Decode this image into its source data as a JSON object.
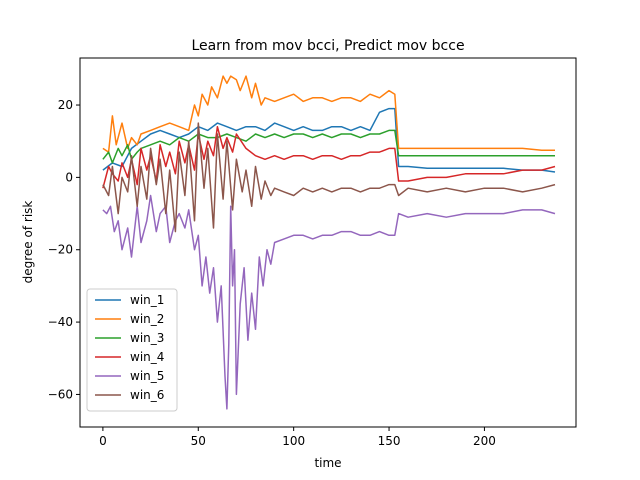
{
  "chart_data": {
    "type": "line",
    "title": "Learn from mov bcci, Predict mov bcce",
    "xlabel": "time",
    "ylabel": "degree of risk",
    "xlim": [
      -12,
      248
    ],
    "ylim": [
      -69,
      33
    ],
    "xticks": [
      0,
      50,
      100,
      150,
      200
    ],
    "yticks": [
      -60,
      -40,
      -20,
      0,
      20
    ],
    "grid": false,
    "legend": "lower-left",
    "series": [
      {
        "name": "win_1",
        "color": "#1f77b4",
        "x": [
          0,
          5,
          10,
          15,
          20,
          25,
          30,
          35,
          40,
          45,
          50,
          55,
          60,
          65,
          70,
          75,
          80,
          85,
          90,
          95,
          100,
          105,
          110,
          115,
          120,
          125,
          130,
          135,
          140,
          145,
          150,
          153,
          155,
          160,
          170,
          180,
          190,
          200,
          210,
          220,
          230,
          237
        ],
        "y": [
          2,
          4,
          3,
          8,
          10,
          12,
          13,
          12,
          11,
          12,
          14,
          13,
          15,
          14,
          13,
          14,
          14,
          13,
          15,
          14,
          13,
          14,
          13,
          13,
          14,
          14,
          13,
          14,
          13,
          18,
          19,
          19,
          3,
          3,
          2.5,
          2.5,
          2.5,
          2.5,
          2.5,
          2,
          2,
          1.5
        ]
      },
      {
        "name": "win_2",
        "color": "#ff7f0e",
        "x": [
          0,
          3,
          5,
          7,
          10,
          13,
          15,
          18,
          20,
          25,
          30,
          35,
          40,
          45,
          48,
          50,
          52,
          55,
          57,
          60,
          63,
          65,
          67,
          70,
          72,
          75,
          78,
          80,
          83,
          85,
          90,
          95,
          100,
          105,
          110,
          115,
          120,
          125,
          130,
          135,
          140,
          145,
          150,
          153,
          155,
          160,
          170,
          180,
          190,
          200,
          210,
          220,
          230,
          237
        ],
        "y": [
          8,
          7,
          17,
          9,
          15,
          8,
          11,
          9,
          12,
          13,
          14,
          15,
          14,
          13,
          20,
          17,
          23,
          20,
          25,
          22,
          28,
          26,
          28,
          27,
          24,
          28,
          22,
          26,
          20,
          22,
          21,
          22,
          23,
          21,
          22,
          22,
          21,
          22,
          22,
          21,
          23,
          22,
          24,
          23,
          8,
          8,
          8,
          8,
          8,
          8,
          8,
          8,
          7.5,
          7.5
        ]
      },
      {
        "name": "win_3",
        "color": "#2ca02c",
        "x": [
          0,
          3,
          5,
          8,
          10,
          13,
          15,
          18,
          20,
          25,
          30,
          35,
          40,
          45,
          50,
          55,
          60,
          65,
          70,
          75,
          80,
          85,
          90,
          95,
          100,
          105,
          110,
          115,
          120,
          125,
          130,
          135,
          140,
          145,
          150,
          153,
          155,
          160,
          170,
          180,
          190,
          200,
          210,
          220,
          230,
          237
        ],
        "y": [
          5,
          7,
          4,
          8,
          6,
          9,
          5,
          7,
          8,
          9,
          10,
          9,
          11,
          10,
          12,
          11,
          11,
          12,
          11,
          10,
          12,
          11,
          12,
          11,
          12,
          12,
          11,
          12,
          11,
          12,
          12,
          11,
          12,
          12,
          13,
          13,
          6,
          6,
          6,
          6,
          6,
          6,
          6,
          6,
          6,
          6
        ]
      },
      {
        "name": "win_4",
        "color": "#d62728",
        "x": [
          0,
          3,
          5,
          8,
          10,
          13,
          15,
          18,
          20,
          23,
          25,
          28,
          30,
          33,
          35,
          38,
          40,
          43,
          45,
          48,
          50,
          53,
          55,
          58,
          60,
          63,
          65,
          68,
          70,
          75,
          80,
          85,
          90,
          95,
          100,
          105,
          110,
          115,
          120,
          125,
          130,
          135,
          140,
          145,
          150,
          153,
          155,
          160,
          170,
          180,
          190,
          200,
          210,
          220,
          230,
          237
        ],
        "y": [
          -3,
          3,
          1,
          -1,
          4,
          0,
          5,
          -2,
          8,
          2,
          6,
          -1,
          9,
          3,
          7,
          1,
          10,
          4,
          9,
          2,
          12,
          5,
          10,
          6,
          14,
          8,
          11,
          7,
          12,
          8,
          6,
          5,
          6,
          5,
          6,
          6,
          5,
          6,
          6,
          5,
          6,
          6,
          7,
          7,
          8,
          8,
          -1,
          -1,
          0,
          0,
          1,
          1,
          1,
          2,
          2,
          3
        ]
      },
      {
        "name": "win_5",
        "color": "#9467bd",
        "x": [
          0,
          2,
          4,
          6,
          8,
          10,
          13,
          15,
          18,
          20,
          23,
          25,
          28,
          30,
          33,
          35,
          38,
          40,
          43,
          45,
          48,
          50,
          52,
          54,
          56,
          58,
          60,
          62,
          64,
          65,
          66,
          67,
          68,
          69,
          70,
          72,
          74,
          76,
          78,
          80,
          82,
          84,
          86,
          88,
          90,
          95,
          100,
          105,
          110,
          115,
          120,
          125,
          130,
          135,
          140,
          145,
          150,
          153,
          155,
          160,
          170,
          180,
          190,
          200,
          210,
          220,
          230,
          237
        ],
        "y": [
          -9,
          -10,
          -8,
          -15,
          -12,
          -20,
          -14,
          -22,
          -8,
          -18,
          -12,
          -5,
          -15,
          -10,
          -8,
          -18,
          -12,
          -10,
          -14,
          -9,
          -20,
          -16,
          -30,
          -22,
          -32,
          -25,
          -40,
          -30,
          -55,
          -64,
          -46,
          -8,
          -30,
          -20,
          -60,
          -35,
          -25,
          -45,
          -32,
          -42,
          -22,
          -30,
          -20,
          -24,
          -18,
          -17,
          -16,
          -16,
          -17,
          -16,
          -16,
          -15,
          -15,
          -16,
          -16,
          -15,
          -16,
          -16,
          -10,
          -11,
          -10,
          -11,
          -10,
          -10,
          -10,
          -9,
          -9,
          -10
        ]
      },
      {
        "name": "win_6",
        "color": "#8c564b",
        "x": [
          0,
          3,
          5,
          8,
          10,
          13,
          15,
          18,
          20,
          23,
          25,
          28,
          30,
          33,
          35,
          38,
          40,
          43,
          45,
          48,
          50,
          53,
          55,
          58,
          60,
          63,
          65,
          68,
          70,
          73,
          75,
          78,
          80,
          83,
          85,
          88,
          90,
          95,
          100,
          105,
          110,
          115,
          120,
          125,
          130,
          135,
          140,
          145,
          150,
          153,
          155,
          160,
          170,
          180,
          190,
          200,
          210,
          220,
          230,
          237
        ],
        "y": [
          -2,
          -5,
          3,
          -10,
          0,
          -4,
          6,
          -8,
          3,
          -6,
          8,
          -2,
          5,
          -10,
          2,
          -15,
          7,
          -5,
          10,
          -12,
          15,
          -3,
          8,
          -14,
          12,
          -6,
          10,
          -9,
          5,
          -4,
          2,
          -8,
          3,
          -6,
          -1,
          -5,
          -3,
          -4,
          -5,
          -3,
          -4,
          -3,
          -4,
          -3,
          -3,
          -4,
          -3,
          -3,
          -2,
          -2,
          -5,
          -3,
          -4,
          -3,
          -4,
          -3,
          -3,
          -4,
          -3,
          -2
        ]
      }
    ]
  }
}
